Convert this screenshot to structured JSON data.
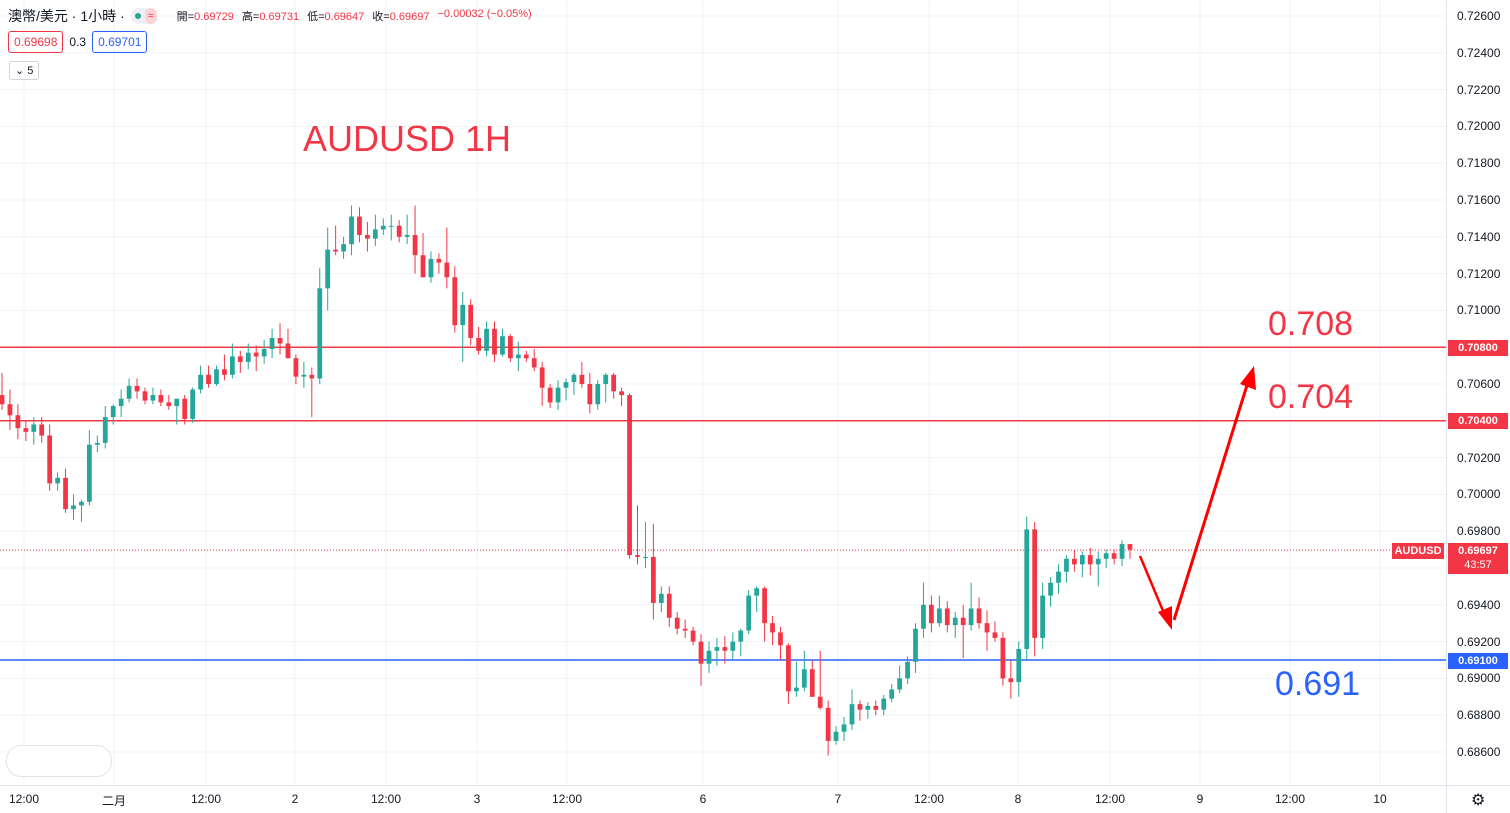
{
  "chart": {
    "symbol_title": "澳幣/美元 · 1小時 ·",
    "ohlc": {
      "open_label": "開=",
      "open": "0.69729",
      "high_label": "高=",
      "high": "0.69731",
      "low_label": "低=",
      "low": "0.69647",
      "close_label": "收=",
      "close": "0.69697",
      "change": "−0.00032 (−0.05%)"
    },
    "sell_price": "0.69698",
    "spread": "0.3",
    "buy_price": "0.69701",
    "indicator_toggle": "5",
    "title_annotation": "AUDUSD 1H",
    "settings_icon": "gear-icon"
  },
  "colors": {
    "up": "#26a69a",
    "down": "#f23645",
    "resistance": "#f23645",
    "support": "#2962ff",
    "grid": "#f0f3fa"
  },
  "annotations": [
    {
      "text": "0.708",
      "price": 0.7081,
      "color": "#f23645"
    },
    {
      "text": "0.704",
      "price": 0.7041,
      "color": "#f23645"
    },
    {
      "text": "0.691",
      "price": 0.69,
      "color": "#2962ff"
    }
  ],
  "chart_data": {
    "type": "candlestick",
    "symbol": "AUDUSD",
    "ylim": [
      0.685,
      0.7265
    ],
    "y_ticks": [
      "0.72600",
      "0.72400",
      "0.72200",
      "0.72000",
      "0.71800",
      "0.71600",
      "0.71400",
      "0.71200",
      "0.71000",
      "0.70800",
      "0.70600",
      "0.70400",
      "0.70200",
      "0.70000",
      "0.69800",
      "0.69600",
      "0.69400",
      "0.69200",
      "0.69000",
      "0.68800",
      "0.68600"
    ],
    "x_ticks": [
      "12:00",
      "二月",
      "12:00",
      "2",
      "12:00",
      "3",
      "12:00",
      "6",
      "7",
      "12:00",
      "8",
      "12:00",
      "9",
      "12:00",
      "10"
    ],
    "horizontal_lines": [
      {
        "price": 0.708,
        "label": "0.70800",
        "color": "#f23645"
      },
      {
        "price": 0.704,
        "label": "0.70400",
        "color": "#f23645"
      },
      {
        "price": 0.691,
        "label": "0.69100",
        "color": "#2962ff"
      }
    ],
    "last_price": {
      "symbol": "AUDUSD",
      "value": "0.69697",
      "countdown": "43:57"
    },
    "projection": [
      {
        "from": [
          0.6969,
          "now"
        ],
        "to": [
          0.692,
          "+4h"
        ]
      },
      {
        "from": [
          0.692,
          "+4h"
        ],
        "to": [
          0.7062,
          "+10h"
        ]
      }
    ],
    "candles": [
      [
        0.7054,
        0.7066,
        0.7046,
        0.7049
      ],
      [
        0.7049,
        0.7057,
        0.7035,
        0.7043
      ],
      [
        0.7043,
        0.7049,
        0.703,
        0.7036
      ],
      [
        0.7036,
        0.704,
        0.7029,
        0.7034
      ],
      [
        0.7034,
        0.7042,
        0.7027,
        0.7038
      ],
      [
        0.7038,
        0.7042,
        0.7028,
        0.7032
      ],
      [
        0.7032,
        0.7038,
        0.7002,
        0.7006
      ],
      [
        0.7006,
        0.7012,
        0.7002,
        0.7009
      ],
      [
        0.7009,
        0.7014,
        0.699,
        0.6992
      ],
      [
        0.6992,
        0.7,
        0.6986,
        0.6994
      ],
      [
        0.6994,
        0.6997,
        0.6985,
        0.6996
      ],
      [
        0.6996,
        0.7035,
        0.6994,
        0.7027
      ],
      [
        0.7027,
        0.7032,
        0.7023,
        0.7028
      ],
      [
        0.7028,
        0.7048,
        0.7025,
        0.7042
      ],
      [
        0.7042,
        0.7049,
        0.7038,
        0.7048
      ],
      [
        0.7048,
        0.7057,
        0.7042,
        0.7052
      ],
      [
        0.7052,
        0.7063,
        0.705,
        0.7059
      ],
      [
        0.7059,
        0.7063,
        0.7052,
        0.7056
      ],
      [
        0.7056,
        0.7058,
        0.7049,
        0.7051
      ],
      [
        0.7051,
        0.7058,
        0.7049,
        0.7054
      ],
      [
        0.7054,
        0.7057,
        0.7048,
        0.705
      ],
      [
        0.705,
        0.7054,
        0.7046,
        0.7048
      ],
      [
        0.7048,
        0.7052,
        0.7038,
        0.7052
      ],
      [
        0.7052,
        0.7054,
        0.7038,
        0.7041
      ],
      [
        0.7041,
        0.7058,
        0.7039,
        0.7057
      ],
      [
        0.7057,
        0.707,
        0.7055,
        0.7065
      ],
      [
        0.7065,
        0.707,
        0.7058,
        0.706
      ],
      [
        0.706,
        0.707,
        0.7059,
        0.7068
      ],
      [
        0.7068,
        0.7076,
        0.7062,
        0.7065
      ],
      [
        0.7065,
        0.7082,
        0.7063,
        0.7075
      ],
      [
        0.7075,
        0.7078,
        0.7066,
        0.7072
      ],
      [
        0.7072,
        0.7082,
        0.7068,
        0.7077
      ],
      [
        0.7077,
        0.7081,
        0.7067,
        0.7075
      ],
      [
        0.7075,
        0.7084,
        0.7071,
        0.7079
      ],
      [
        0.7079,
        0.709,
        0.7074,
        0.7085
      ],
      [
        0.7085,
        0.7093,
        0.7076,
        0.7082
      ],
      [
        0.7082,
        0.709,
        0.7074,
        0.7074
      ],
      [
        0.7074,
        0.7076,
        0.706,
        0.7064
      ],
      [
        0.7064,
        0.7072,
        0.7058,
        0.7065
      ],
      [
        0.7065,
        0.7069,
        0.7042,
        0.7063
      ],
      [
        0.7063,
        0.7123,
        0.706,
        0.7112
      ],
      [
        0.7112,
        0.7145,
        0.71,
        0.7133
      ],
      [
        0.7133,
        0.7146,
        0.713,
        0.7132
      ],
      [
        0.7132,
        0.714,
        0.7128,
        0.7136
      ],
      [
        0.7136,
        0.7157,
        0.713,
        0.7151
      ],
      [
        0.7151,
        0.7156,
        0.7137,
        0.7141
      ],
      [
        0.7141,
        0.7148,
        0.7132,
        0.7139
      ],
      [
        0.7139,
        0.7152,
        0.7135,
        0.7144
      ],
      [
        0.7144,
        0.715,
        0.7141,
        0.7146
      ],
      [
        0.7146,
        0.7152,
        0.7138,
        0.7146
      ],
      [
        0.7146,
        0.7149,
        0.7137,
        0.714
      ],
      [
        0.714,
        0.7152,
        0.7136,
        0.7141
      ],
      [
        0.7141,
        0.7157,
        0.712,
        0.713
      ],
      [
        0.713,
        0.7142,
        0.7118,
        0.7118
      ],
      [
        0.7118,
        0.7132,
        0.7115,
        0.7128
      ],
      [
        0.7128,
        0.7131,
        0.712,
        0.7126
      ],
      [
        0.7126,
        0.7145,
        0.7112,
        0.7118
      ],
      [
        0.7118,
        0.7124,
        0.7088,
        0.7092
      ],
      [
        0.7092,
        0.711,
        0.7072,
        0.7103
      ],
      [
        0.7103,
        0.7106,
        0.7081,
        0.7085
      ],
      [
        0.7085,
        0.7091,
        0.7076,
        0.7078
      ],
      [
        0.7078,
        0.7094,
        0.7075,
        0.709
      ],
      [
        0.709,
        0.7094,
        0.7072,
        0.7076
      ],
      [
        0.7076,
        0.709,
        0.7075,
        0.7086
      ],
      [
        0.7086,
        0.7087,
        0.7072,
        0.7074
      ],
      [
        0.7074,
        0.7083,
        0.7067,
        0.7076
      ],
      [
        0.7076,
        0.7078,
        0.7072,
        0.7074
      ],
      [
        0.7074,
        0.7079,
        0.7067,
        0.7069
      ],
      [
        0.7069,
        0.7072,
        0.7048,
        0.7058
      ],
      [
        0.7058,
        0.706,
        0.7047,
        0.705
      ],
      [
        0.705,
        0.7062,
        0.7046,
        0.7058
      ],
      [
        0.7058,
        0.7063,
        0.7051,
        0.7061
      ],
      [
        0.7061,
        0.7066,
        0.7054,
        0.7065
      ],
      [
        0.7065,
        0.7072,
        0.7058,
        0.706
      ],
      [
        0.706,
        0.7066,
        0.7044,
        0.7049
      ],
      [
        0.7049,
        0.7062,
        0.7046,
        0.706
      ],
      [
        0.706,
        0.7066,
        0.705,
        0.7065
      ],
      [
        0.7065,
        0.7066,
        0.7052,
        0.7056
      ],
      [
        0.7056,
        0.7058,
        0.7048,
        0.7054
      ],
      [
        0.7054,
        0.7055,
        0.6965,
        0.6967
      ],
      [
        0.6967,
        0.6994,
        0.6962,
        0.6966
      ],
      [
        0.6966,
        0.6985,
        0.696,
        0.6966
      ],
      [
        0.6966,
        0.6984,
        0.6932,
        0.6941
      ],
      [
        0.6941,
        0.695,
        0.6936,
        0.6946
      ],
      [
        0.6946,
        0.695,
        0.6928,
        0.6933
      ],
      [
        0.6933,
        0.6936,
        0.6924,
        0.6927
      ],
      [
        0.6927,
        0.6932,
        0.6922,
        0.6926
      ],
      [
        0.6926,
        0.6928,
        0.6918,
        0.692
      ],
      [
        0.692,
        0.6924,
        0.6896,
        0.6908
      ],
      [
        0.6908,
        0.692,
        0.6903,
        0.6915
      ],
      [
        0.6915,
        0.6922,
        0.6907,
        0.6917
      ],
      [
        0.6917,
        0.6923,
        0.6908,
        0.6915
      ],
      [
        0.6915,
        0.6925,
        0.691,
        0.692
      ],
      [
        0.692,
        0.6927,
        0.6912,
        0.6926
      ],
      [
        0.6926,
        0.6948,
        0.6924,
        0.6945
      ],
      [
        0.6945,
        0.695,
        0.6936,
        0.6949
      ],
      [
        0.6949,
        0.695,
        0.692,
        0.693
      ],
      [
        0.693,
        0.6934,
        0.6918,
        0.6925
      ],
      [
        0.6925,
        0.6928,
        0.691,
        0.6918
      ],
      [
        0.6918,
        0.6919,
        0.6886,
        0.6893
      ],
      [
        0.6893,
        0.6909,
        0.689,
        0.6895
      ],
      [
        0.6895,
        0.6915,
        0.6893,
        0.6905
      ],
      [
        0.6905,
        0.691,
        0.689,
        0.689
      ],
      [
        0.689,
        0.6915,
        0.6883,
        0.6884
      ],
      [
        0.6884,
        0.6888,
        0.6858,
        0.6866
      ],
      [
        0.6866,
        0.6874,
        0.6864,
        0.6871
      ],
      [
        0.6871,
        0.6879,
        0.6866,
        0.6875
      ],
      [
        0.6875,
        0.6894,
        0.6872,
        0.6886
      ],
      [
        0.6886,
        0.6888,
        0.6877,
        0.6883
      ],
      [
        0.6883,
        0.6887,
        0.6878,
        0.6885
      ],
      [
        0.6885,
        0.6888,
        0.688,
        0.6883
      ],
      [
        0.6883,
        0.6891,
        0.688,
        0.6889
      ],
      [
        0.6889,
        0.6897,
        0.6887,
        0.6894
      ],
      [
        0.6894,
        0.6907,
        0.6892,
        0.69
      ],
      [
        0.69,
        0.6912,
        0.6897,
        0.6909
      ],
      [
        0.6909,
        0.693,
        0.6903,
        0.6927
      ],
      [
        0.6927,
        0.6952,
        0.6922,
        0.694
      ],
      [
        0.694,
        0.6945,
        0.6925,
        0.693
      ],
      [
        0.693,
        0.6945,
        0.6928,
        0.6938
      ],
      [
        0.6938,
        0.6942,
        0.6925,
        0.6929
      ],
      [
        0.6929,
        0.6936,
        0.6922,
        0.6933
      ],
      [
        0.6933,
        0.694,
        0.6911,
        0.6929
      ],
      [
        0.6929,
        0.6952,
        0.6926,
        0.6938
      ],
      [
        0.6938,
        0.6944,
        0.6927,
        0.693
      ],
      [
        0.693,
        0.6937,
        0.6915,
        0.6925
      ],
      [
        0.6925,
        0.6931,
        0.692,
        0.6922
      ],
      [
        0.6922,
        0.6925,
        0.6896,
        0.69
      ],
      [
        0.69,
        0.691,
        0.6889,
        0.6898
      ],
      [
        0.6898,
        0.692,
        0.689,
        0.6916
      ],
      [
        0.6916,
        0.6988,
        0.691,
        0.6981
      ],
      [
        0.6981,
        0.6985,
        0.6912,
        0.6922
      ],
      [
        0.6922,
        0.6952,
        0.6916,
        0.6945
      ],
      [
        0.6945,
        0.6955,
        0.6939,
        0.6952
      ],
      [
        0.6952,
        0.6962,
        0.6946,
        0.6958
      ],
      [
        0.6958,
        0.6967,
        0.6952,
        0.6965
      ],
      [
        0.6965,
        0.697,
        0.6958,
        0.6962
      ],
      [
        0.6962,
        0.6969,
        0.6955,
        0.6967
      ],
      [
        0.6967,
        0.6971,
        0.6956,
        0.6962
      ],
      [
        0.6962,
        0.6969,
        0.695,
        0.6965
      ],
      [
        0.6965,
        0.697,
        0.696,
        0.6968
      ],
      [
        0.6968,
        0.697,
        0.6962,
        0.6965
      ],
      [
        0.6965,
        0.6975,
        0.6961,
        0.6973
      ],
      [
        0.6973,
        0.6973,
        0.6965,
        0.697
      ]
    ]
  }
}
